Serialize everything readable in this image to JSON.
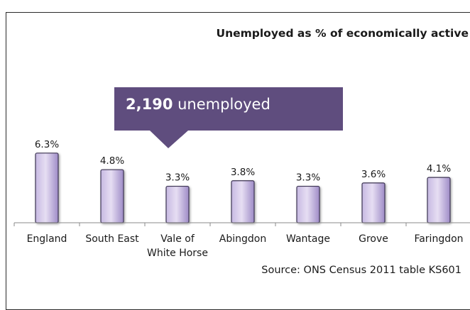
{
  "chart_data": {
    "type": "bar",
    "title": "Unemployed as % of economically active",
    "categories": [
      "England",
      "South East",
      "Vale of White Horse",
      "Abingdon",
      "Wantage",
      "Grove",
      "Faringdon"
    ],
    "category_lines": [
      [
        "England"
      ],
      [
        "South East"
      ],
      [
        "Vale of",
        "White Horse"
      ],
      [
        "Abingdon"
      ],
      [
        "Wantage"
      ],
      [
        "Grove"
      ],
      [
        "Faringdon"
      ]
    ],
    "values": [
      6.3,
      4.8,
      3.3,
      3.8,
      3.3,
      3.6,
      4.1
    ],
    "data_labels": [
      "6.3%",
      "4.8%",
      "3.3%",
      "3.8%",
      "3.3%",
      "3.6%",
      "4.1%"
    ],
    "ylim": [
      0,
      7.7
    ],
    "xlabel": "",
    "ylabel": "",
    "grid": false,
    "legend": "none",
    "colors": {
      "bar_light": "#e6def3",
      "bar_mid": "#c7b9e2",
      "bar_dark": "#9f8cc7",
      "bar_edge": "#3c3452",
      "callout": "#5f4d7e"
    },
    "annotation": {
      "number": "2,190",
      "text": " unemployed"
    }
  },
  "source": "Source: ONS Census 2011 table KS601"
}
